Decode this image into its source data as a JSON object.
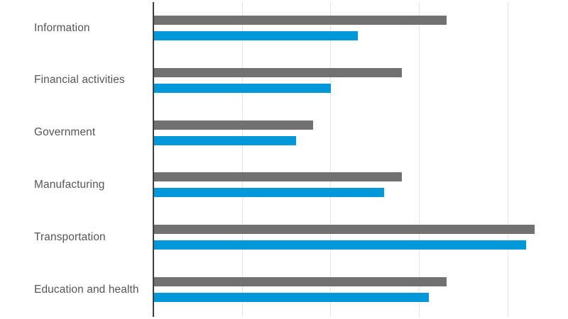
{
  "chart": {
    "title": "",
    "legend": "none",
    "tick_labels": "none"
  },
  "chart_data": {
    "type": "bar",
    "orientation": "horizontal",
    "categories": [
      "Information",
      "Financial activities",
      "Government",
      "Manufacturing",
      "Transportation",
      "Education and health"
    ],
    "series": [
      {
        "name": "gray-series",
        "color": "#717171",
        "values": [
          3.3,
          2.8,
          1.8,
          2.8,
          4.3,
          3.3
        ]
      },
      {
        "name": "blue-series",
        "color": "#0098d8",
        "values": [
          2.3,
          2.0,
          1.6,
          2.6,
          4.2,
          3.1
        ]
      }
    ],
    "title": "",
    "xlabel": "",
    "ylabel": "",
    "xlim": [
      0,
      4.68
    ],
    "x_gridlines_at": [
      1,
      2,
      3,
      4
    ],
    "grid": "vertical gridlines only, no tick labels, no legend, no data labels",
    "legend_position": "none",
    "axis_line_color": "#3e3e3e",
    "gridline_color": "#e4e4e4",
    "label_color": "#55565a",
    "background_color": "#ffffff"
  }
}
